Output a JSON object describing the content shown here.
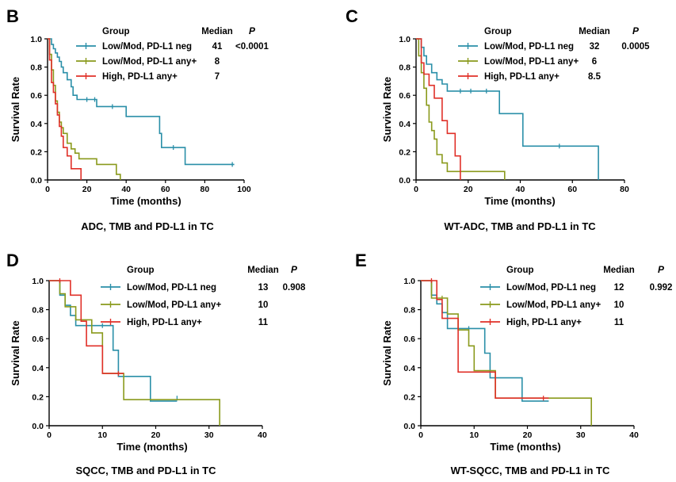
{
  "colors": {
    "neg": "#2a8fa8",
    "any_low": "#8a9a1c",
    "high": "#e03028",
    "axis": "#000000"
  },
  "chart_data": [
    {
      "panel_letter": "B",
      "type": "line",
      "subtype": "kaplan-meier",
      "title": "ADC, TMB and PD-L1 in TC",
      "xlabel": "Time (months)",
      "ylabel": "Survival Rate",
      "xlim": [
        0,
        100
      ],
      "xticks": [
        0,
        20,
        40,
        60,
        80,
        100
      ],
      "ylim": [
        0,
        1.0
      ],
      "yticks": [
        "0.0",
        "0.2",
        "0.4",
        "0.6",
        "0.8",
        "1.0"
      ],
      "legend_header": {
        "group": "Group",
        "median": "Median",
        "p": "P"
      },
      "p_value": "<0.0001",
      "series": [
        {
          "name": "Low/Mod, PD-L1 neg",
          "median": "41",
          "color_key": "neg",
          "x": [
            0,
            2,
            3,
            4,
            5,
            6,
            7,
            8,
            10,
            12,
            13,
            15,
            18,
            25,
            40,
            45,
            57,
            58,
            62,
            70,
            95
          ],
          "y": [
            1.0,
            0.96,
            0.93,
            0.9,
            0.87,
            0.84,
            0.8,
            0.76,
            0.71,
            0.66,
            0.6,
            0.57,
            0.57,
            0.52,
            0.45,
            0.45,
            0.33,
            0.23,
            0.23,
            0.11,
            0.11
          ],
          "censor_x": [
            20,
            24,
            33,
            64,
            94
          ],
          "censor_y": [
            0.57,
            0.57,
            0.52,
            0.23,
            0.11
          ]
        },
        {
          "name": "Low/Mod, PD-L1 any+",
          "median": "8",
          "color_key": "any_low",
          "x": [
            0,
            1,
            2,
            3,
            4,
            5,
            6,
            7,
            8,
            10,
            12,
            14,
            16,
            20,
            25,
            35,
            37
          ],
          "y": [
            1.0,
            0.89,
            0.78,
            0.67,
            0.56,
            0.48,
            0.41,
            0.37,
            0.33,
            0.26,
            0.22,
            0.19,
            0.15,
            0.15,
            0.11,
            0.04,
            0.0
          ],
          "censor_x": [],
          "censor_y": []
        },
        {
          "name": "High, PD-L1 any+",
          "median": "7",
          "color_key": "high",
          "x": [
            0,
            1,
            2,
            3,
            4,
            5,
            6,
            7,
            8,
            10,
            12,
            16,
            17
          ],
          "y": [
            1.0,
            0.85,
            0.69,
            0.62,
            0.54,
            0.46,
            0.38,
            0.31,
            0.23,
            0.17,
            0.08,
            0.08,
            0.0
          ],
          "censor_x": [],
          "censor_y": []
        }
      ]
    },
    {
      "panel_letter": "C",
      "type": "line",
      "subtype": "kaplan-meier",
      "title": "WT-ADC, TMB and PD-L1 in TC",
      "xlabel": "Time (months)",
      "ylabel": "Survival Rate",
      "xlim": [
        0,
        80
      ],
      "xticks": [
        0,
        20,
        40,
        60,
        80
      ],
      "ylim": [
        0,
        1.0
      ],
      "yticks": [
        "0.0",
        "0.2",
        "0.4",
        "0.6",
        "0.8",
        "1.0"
      ],
      "legend_header": {
        "group": "Group",
        "median": "Median",
        "p": "P"
      },
      "p_value": "0.0005",
      "series": [
        {
          "name": "Low/Mod, PD-L1 neg",
          "median": "32",
          "color_key": "neg",
          "x": [
            0,
            2,
            3,
            4,
            6,
            8,
            10,
            12,
            32,
            41,
            70
          ],
          "y": [
            1.0,
            0.94,
            0.88,
            0.82,
            0.76,
            0.71,
            0.68,
            0.63,
            0.47,
            0.24,
            0.0
          ],
          "censor_x": [
            17,
            21,
            27,
            55
          ],
          "censor_y": [
            0.63,
            0.63,
            0.63,
            0.24
          ]
        },
        {
          "name": "Low/Mod, PD-L1 any+",
          "median": "6",
          "color_key": "any_low",
          "x": [
            0,
            1,
            2,
            3,
            4,
            5,
            6,
            7,
            8,
            10,
            12,
            34
          ],
          "y": [
            1.0,
            0.88,
            0.76,
            0.65,
            0.53,
            0.41,
            0.35,
            0.29,
            0.18,
            0.12,
            0.06,
            0.0
          ],
          "censor_x": [],
          "censor_y": []
        },
        {
          "name": "High, PD-L1 any+",
          "median": "8.5",
          "color_key": "high",
          "x": [
            0,
            2,
            3,
            5,
            7,
            10,
            12,
            15,
            17
          ],
          "y": [
            1.0,
            0.83,
            0.75,
            0.67,
            0.58,
            0.42,
            0.33,
            0.17,
            0.0
          ],
          "censor_x": [],
          "censor_y": []
        }
      ]
    },
    {
      "panel_letter": "D",
      "type": "line",
      "subtype": "kaplan-meier",
      "title": "SQCC, TMB and PD-L1 in TC",
      "xlabel": "Time (months)",
      "ylabel": "Survival Rate",
      "xlim": [
        0,
        40
      ],
      "xticks": [
        0,
        10,
        20,
        30,
        40
      ],
      "ylim": [
        0,
        1.0
      ],
      "yticks": [
        "0.0",
        "0.2",
        "0.4",
        "0.6",
        "0.8",
        "1.0"
      ],
      "legend_header": {
        "group": "Group",
        "median": "Median",
        "p": "P"
      },
      "p_value": "0.908",
      "series": [
        {
          "name": "Low/Mod, PD-L1 neg",
          "median": "13",
          "color_key": "neg",
          "x": [
            0,
            2,
            3,
            4,
            5,
            8,
            12,
            13,
            19,
            24
          ],
          "y": [
            1.0,
            0.9,
            0.83,
            0.76,
            0.69,
            0.69,
            0.52,
            0.34,
            0.17,
            0.17
          ],
          "censor_x": [
            10,
            24
          ],
          "censor_y": [
            0.69,
            0.19
          ]
        },
        {
          "name": "Low/Mod, PD-L1 any+",
          "median": "10",
          "color_key": "any_low",
          "x": [
            0,
            2,
            3,
            5,
            8,
            10,
            12,
            14,
            32
          ],
          "y": [
            1.0,
            0.91,
            0.82,
            0.73,
            0.64,
            0.36,
            0.36,
            0.18,
            0.0
          ],
          "censor_x": [],
          "censor_y": []
        },
        {
          "name": "High, PD-L1 any+",
          "median": "11",
          "color_key": "high",
          "x": [
            0,
            2,
            4,
            6,
            7,
            9,
            10,
            14
          ],
          "y": [
            1.0,
            1.0,
            0.9,
            0.72,
            0.55,
            0.55,
            0.36,
            0.36
          ],
          "censor_x": [
            2,
            13
          ],
          "censor_y": [
            1.0,
            0.36
          ]
        }
      ]
    },
    {
      "panel_letter": "E",
      "type": "line",
      "subtype": "kaplan-meier",
      "title": "WT-SQCC, TMB and PD-L1 in TC",
      "xlabel": "Time (months)",
      "ylabel": "Survival Rate",
      "xlim": [
        0,
        40
      ],
      "xticks": [
        0,
        10,
        20,
        30,
        40
      ],
      "ylim": [
        0,
        1.0
      ],
      "yticks": [
        "0.0",
        "0.2",
        "0.4",
        "0.6",
        "0.8",
        "1.0"
      ],
      "legend_header": {
        "group": "Group",
        "median": "Median",
        "p": "P"
      },
      "p_value": "0.992",
      "series": [
        {
          "name": "Low/Mod, PD-L1 neg",
          "median": "12",
          "color_key": "neg",
          "x": [
            0,
            2,
            3,
            4,
            5,
            7,
            10,
            12,
            13,
            19,
            24
          ],
          "y": [
            1.0,
            0.9,
            0.84,
            0.78,
            0.67,
            0.67,
            0.67,
            0.5,
            0.33,
            0.17,
            0.17
          ],
          "censor_x": [
            9
          ],
          "censor_y": [
            0.67
          ]
        },
        {
          "name": "Low/Mod, PD-L1 any+",
          "median": "10",
          "color_key": "any_low",
          "x": [
            0,
            2,
            3,
            5,
            7,
            9,
            10,
            14,
            32
          ],
          "y": [
            1.0,
            0.88,
            0.88,
            0.77,
            0.66,
            0.55,
            0.38,
            0.19,
            0.0
          ],
          "censor_x": [
            4
          ],
          "censor_y": [
            0.88
          ]
        },
        {
          "name": "High, PD-L1 any+",
          "median": "11",
          "color_key": "high",
          "x": [
            0,
            3,
            4,
            6,
            7,
            11,
            14,
            24
          ],
          "y": [
            1.0,
            0.87,
            0.74,
            0.74,
            0.37,
            0.37,
            0.19,
            0.19
          ],
          "censor_x": [
            2,
            23
          ],
          "censor_y": [
            1.0,
            0.19
          ]
        }
      ]
    }
  ]
}
